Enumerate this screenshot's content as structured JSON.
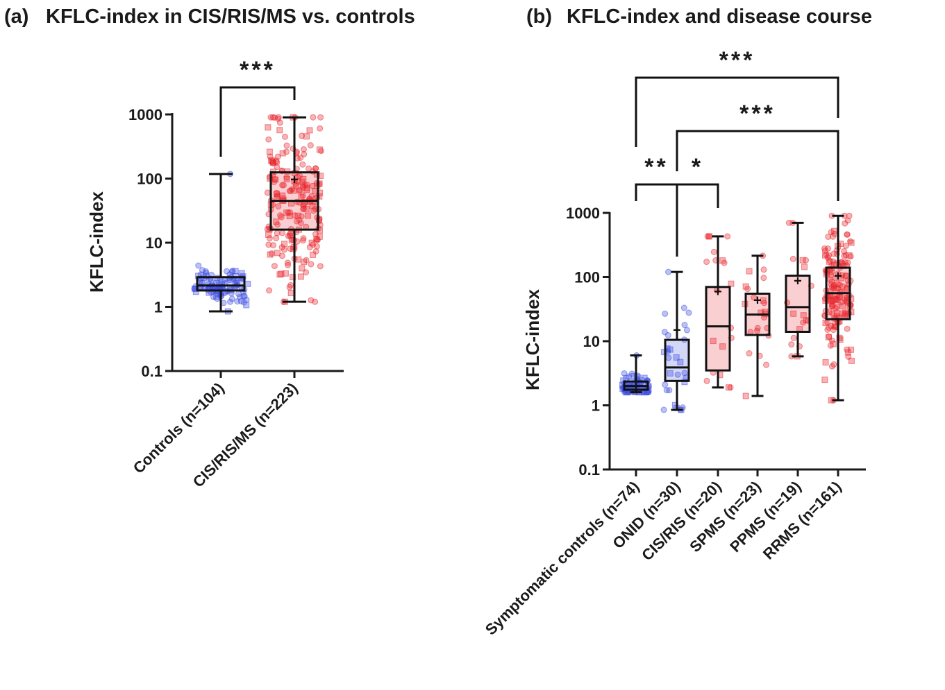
{
  "chart_data": [
    {
      "type": "box",
      "panel": "(a)",
      "title": "KFLC-index in CIS/RIS/MS vs. controls",
      "ylabel": "KFLC-index",
      "yscale": "log",
      "ylim": [
        0.1,
        1000
      ],
      "yticks": [
        "0.1",
        "1",
        "10",
        "100",
        "1000"
      ],
      "categories": [
        "Controls (n=104)",
        "CIS/RIS/MS (n=223)"
      ],
      "colors": {
        "Controls (n=104)": "#3b4ce0",
        "CIS/RIS/MS (n=223)": "#e8242c"
      },
      "boxes": [
        {
          "name": "Controls (n=104)",
          "min": 0.85,
          "q1": 1.8,
          "median": 2.15,
          "q3": 2.9,
          "max": 118,
          "mean": null
        },
        {
          "name": "CIS/RIS/MS (n=223)",
          "min": 1.2,
          "q1": 16,
          "median": 45,
          "q3": 125,
          "max": 900,
          "mean": 97
        }
      ],
      "significance": [
        {
          "from": "Controls (n=104)",
          "to": "CIS/RIS/MS (n=223)",
          "label": "***"
        }
      ]
    },
    {
      "type": "box",
      "panel": "(b)",
      "title": "KFLC-index and disease course",
      "ylabel": "KFLC-index",
      "yscale": "log",
      "ylim": [
        0.1,
        1000
      ],
      "yticks": [
        "0.1",
        "1",
        "10",
        "100",
        "1000"
      ],
      "categories": [
        "Symptomatic controls (n=74)",
        "ONID (n=30)",
        "CIS/RIS (n=20)",
        "SPMS (n=23)",
        "PPMS (n=19)",
        "RRMS (n=161)"
      ],
      "colors": {
        "controls": "#3b4ce0",
        "ms": "#e8242c"
      },
      "boxes": [
        {
          "name": "Symptomatic controls (n=74)",
          "min": 1.6,
          "q1": 1.75,
          "median": 2.0,
          "q3": 2.35,
          "max": 6.0,
          "mean": 2.0
        },
        {
          "name": "ONID (n=30)",
          "min": 0.85,
          "q1": 2.4,
          "median": 3.9,
          "q3": 10.5,
          "max": 120,
          "mean": 15
        },
        {
          "name": "CIS/RIS (n=20)",
          "min": 1.9,
          "q1": 3.5,
          "median": 17,
          "q3": 70,
          "max": 430,
          "mean": 60
        },
        {
          "name": "SPMS (n=23)",
          "min": 1.4,
          "q1": 12.5,
          "median": 26,
          "q3": 55,
          "max": 215,
          "mean": 44
        },
        {
          "name": "PPMS (n=19)",
          "min": 5.8,
          "q1": 14,
          "median": 34,
          "q3": 105,
          "max": 700,
          "mean": 88
        },
        {
          "name": "RRMS (n=161)",
          "min": 1.2,
          "q1": 22,
          "median": 56,
          "q3": 140,
          "max": 900,
          "mean": 105
        }
      ],
      "significance": [
        {
          "from": "Symptomatic controls (n=74)",
          "to": "RRMS (n=161)",
          "label": "***"
        },
        {
          "from": "ONID (n=30)",
          "to": "RRMS (n=161)",
          "label": "***"
        },
        {
          "from": "Symptomatic controls (n=74)",
          "to": "ONID (n=30)",
          "label": "**"
        },
        {
          "from": "ONID (n=30)",
          "to": "CIS/RIS (n=20)",
          "label": "*"
        }
      ]
    }
  ]
}
